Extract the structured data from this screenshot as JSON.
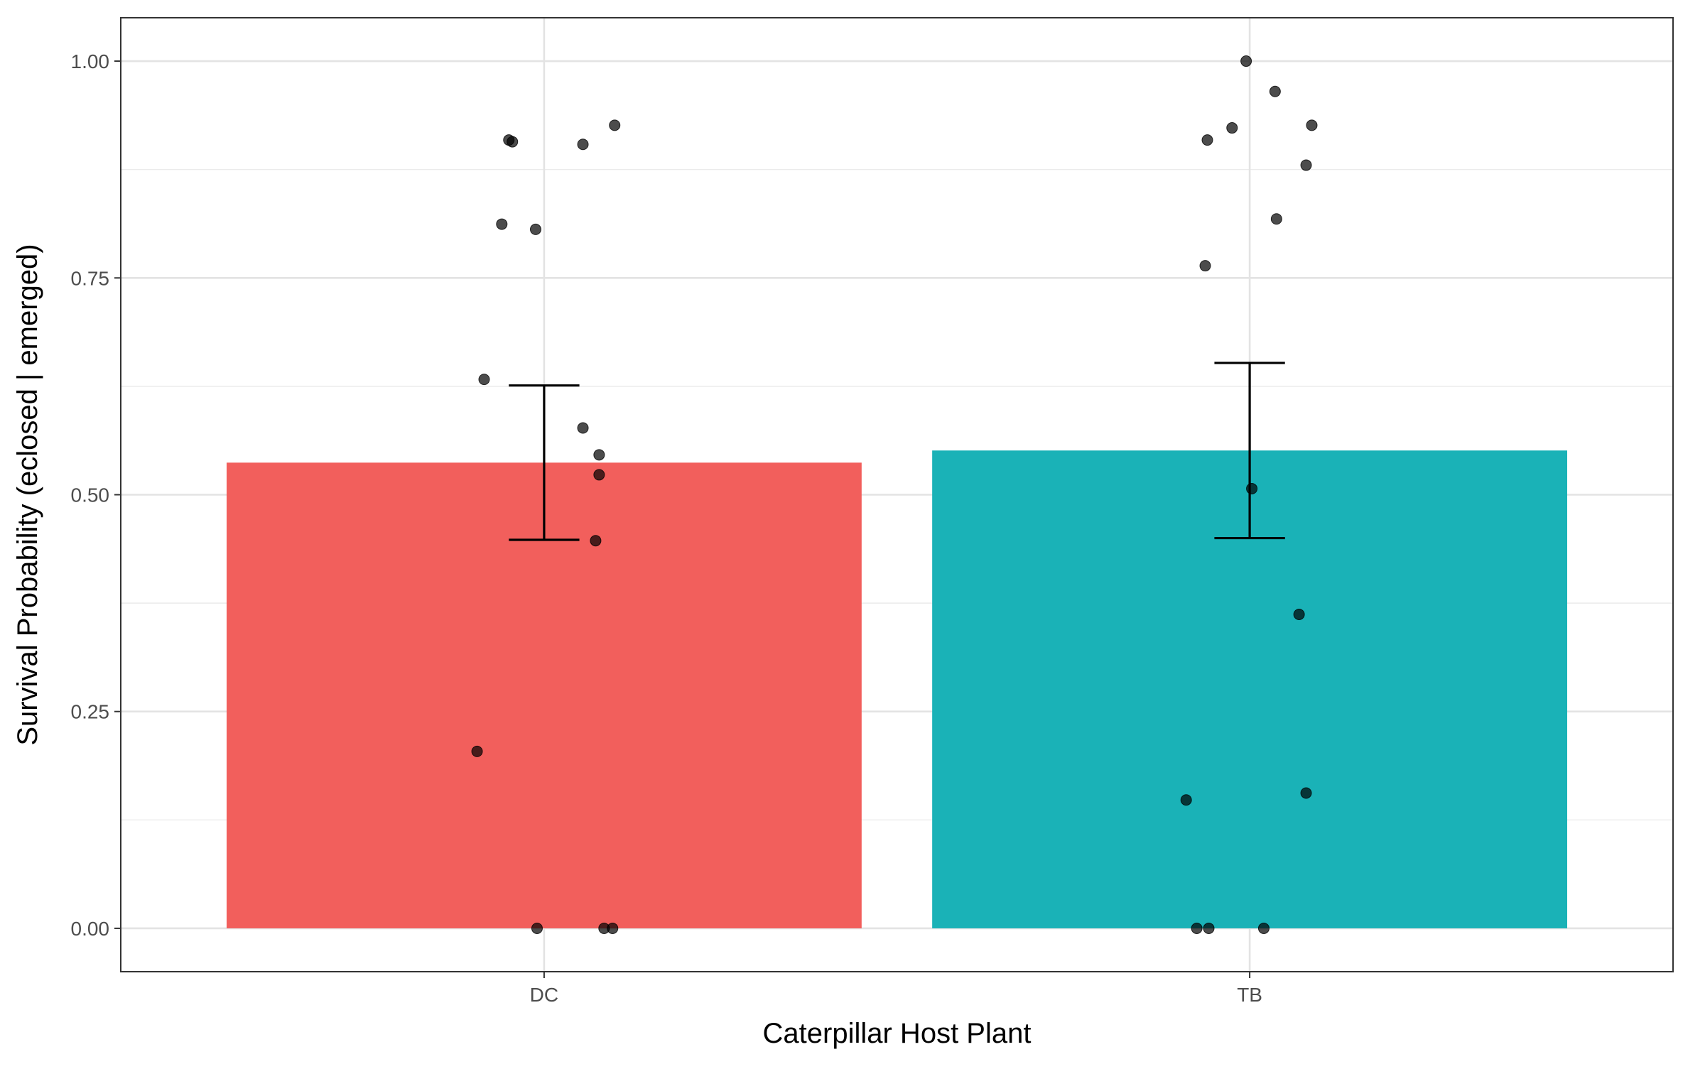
{
  "chart_data": {
    "type": "bar",
    "xlabel": "Caterpillar Host Plant",
    "ylabel": "Survival Probability (eclosed | emerged)",
    "categories": [
      "DC",
      "TB"
    ],
    "values": [
      0.537,
      0.551
    ],
    "bar_colors": [
      "#F25F5C",
      "#1AB2B7"
    ],
    "error_bars": [
      {
        "category": "DC",
        "lower": 0.448,
        "upper": 0.626
      },
      {
        "category": "TB",
        "lower": 0.45,
        "upper": 0.652
      }
    ],
    "points": [
      {
        "category": "DC",
        "jitter": -0.05,
        "y": 0.909
      },
      {
        "category": "DC",
        "jitter": -0.045,
        "y": 0.907
      },
      {
        "category": "DC",
        "jitter": 0.055,
        "y": 0.904
      },
      {
        "category": "DC",
        "jitter": 0.1,
        "y": 0.926
      },
      {
        "category": "DC",
        "jitter": -0.06,
        "y": 0.812
      },
      {
        "category": "DC",
        "jitter": -0.012,
        "y": 0.806
      },
      {
        "category": "DC",
        "jitter": -0.085,
        "y": 0.633
      },
      {
        "category": "DC",
        "jitter": 0.055,
        "y": 0.577
      },
      {
        "category": "DC",
        "jitter": 0.078,
        "y": 0.546
      },
      {
        "category": "DC",
        "jitter": 0.078,
        "y": 0.523
      },
      {
        "category": "DC",
        "jitter": 0.073,
        "y": 0.447
      },
      {
        "category": "DC",
        "jitter": -0.095,
        "y": 0.204
      },
      {
        "category": "DC",
        "jitter": -0.01,
        "y": 0.0
      },
      {
        "category": "DC",
        "jitter": 0.085,
        "y": 0.0
      },
      {
        "category": "DC",
        "jitter": 0.097,
        "y": 0.0
      },
      {
        "category": "TB",
        "jitter": -0.005,
        "y": 1.0
      },
      {
        "category": "TB",
        "jitter": 0.036,
        "y": 0.965
      },
      {
        "category": "TB",
        "jitter": 0.088,
        "y": 0.926
      },
      {
        "category": "TB",
        "jitter": -0.025,
        "y": 0.923
      },
      {
        "category": "TB",
        "jitter": -0.06,
        "y": 0.909
      },
      {
        "category": "TB",
        "jitter": 0.08,
        "y": 0.88
      },
      {
        "category": "TB",
        "jitter": 0.038,
        "y": 0.818
      },
      {
        "category": "TB",
        "jitter": -0.063,
        "y": 0.764
      },
      {
        "category": "TB",
        "jitter": 0.003,
        "y": 0.507
      },
      {
        "category": "TB",
        "jitter": 0.07,
        "y": 0.362
      },
      {
        "category": "TB",
        "jitter": 0.08,
        "y": 0.156
      },
      {
        "category": "TB",
        "jitter": -0.09,
        "y": 0.148
      },
      {
        "category": "TB",
        "jitter": -0.075,
        "y": 0.0
      },
      {
        "category": "TB",
        "jitter": -0.058,
        "y": 0.0
      },
      {
        "category": "TB",
        "jitter": 0.02,
        "y": 0.0
      }
    ],
    "ylim": [
      -0.05,
      1.05
    ],
    "yticks": [
      0,
      0.25,
      0.5,
      0.75,
      1
    ],
    "ytick_labels": [
      "0.00",
      "0.25",
      "0.50",
      "0.75",
      "1.00"
    ],
    "grid": true,
    "legend": "none"
  }
}
